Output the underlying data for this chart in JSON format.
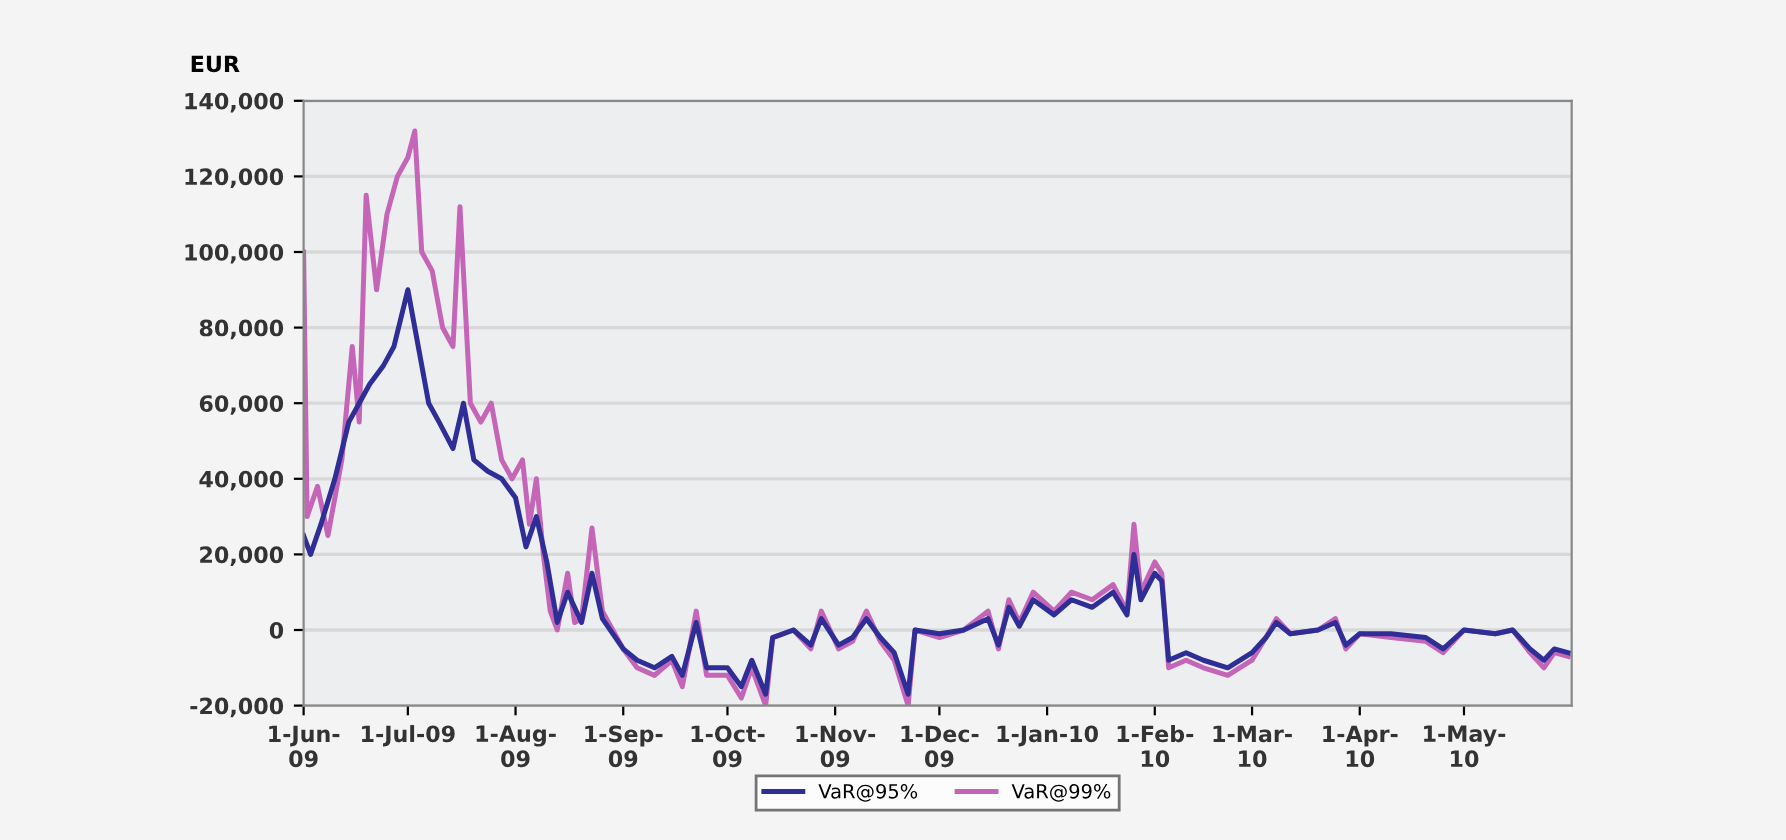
{
  "chart_data": {
    "type": "line",
    "ylabel": "EUR",
    "xlim": [
      "2009-06-01",
      "2010-06-01"
    ],
    "xticks": [
      {
        "value": "2009-06-01",
        "label": "1-Jun-\n09"
      },
      {
        "value": "2009-07-01",
        "label": "1-Jul-09"
      },
      {
        "value": "2009-08-01",
        "label": "1-Aug-\n09"
      },
      {
        "value": "2009-09-01",
        "label": "1-Sep-\n09"
      },
      {
        "value": "2009-10-01",
        "label": "1-Oct-\n09"
      },
      {
        "value": "2009-11-01",
        "label": "1-Nov-\n09"
      },
      {
        "value": "2009-12-01",
        "label": "1-Dec-\n09"
      },
      {
        "value": "2010-01-01",
        "label": "1-Jan-10"
      },
      {
        "value": "2010-02-01",
        "label": "1-Feb-\n10"
      },
      {
        "value": "2010-03-01",
        "label": "1-Mar-\n10"
      },
      {
        "value": "2010-04-01",
        "label": "1-Apr-\n10"
      },
      {
        "value": "2010-05-01",
        "label": "1-May-\n10"
      }
    ],
    "ylim": [
      -20000,
      140000
    ],
    "yticks": [
      {
        "value": -20000,
        "label": "-20,000"
      },
      0,
      {
        "value": 20000,
        "label": "20,000"
      },
      {
        "value": 40000,
        "label": "40,000"
      },
      {
        "value": 60000,
        "label": "60,000"
      },
      {
        "value": 80000,
        "label": "80,000"
      },
      {
        "value": 100000,
        "label": "100,000"
      },
      {
        "value": 120000,
        "label": "120,000"
      },
      {
        "value": 140000,
        "label": "140,000"
      }
    ],
    "grid": "y",
    "legend": "bottom",
    "marker": "none",
    "line_style": "solid",
    "series": [
      {
        "name": "VaR@99%",
        "color": "#c465b8",
        "x": [
          "2009-06-01",
          "2009-06-02",
          "2009-06-05",
          "2009-06-08",
          "2009-06-12",
          "2009-06-15",
          "2009-06-17",
          "2009-06-19",
          "2009-06-22",
          "2009-06-25",
          "2009-06-28",
          "2009-07-01",
          "2009-07-03",
          "2009-07-05",
          "2009-07-08",
          "2009-07-11",
          "2009-07-14",
          "2009-07-16",
          "2009-07-19",
          "2009-07-22",
          "2009-07-25",
          "2009-07-28",
          "2009-07-31",
          "2009-08-03",
          "2009-08-05",
          "2009-08-07",
          "2009-08-09",
          "2009-08-11",
          "2009-08-13",
          "2009-08-16",
          "2009-08-18",
          "2009-08-20",
          "2009-08-23",
          "2009-08-26",
          "2009-09-01",
          "2009-09-05",
          "2009-09-10",
          "2009-09-15",
          "2009-09-18",
          "2009-09-22",
          "2009-09-25",
          "2009-10-01",
          "2009-10-05",
          "2009-10-08",
          "2009-10-12",
          "2009-10-14",
          "2009-10-20",
          "2009-10-25",
          "2009-10-28",
          "2009-11-02",
          "2009-11-06",
          "2009-11-10",
          "2009-11-14",
          "2009-11-18",
          "2009-11-22",
          "2009-11-24",
          "2009-12-01",
          "2009-12-08",
          "2009-12-15",
          "2009-12-18",
          "2009-12-21",
          "2009-12-24",
          "2009-12-28",
          "2010-01-03",
          "2010-01-08",
          "2010-01-14",
          "2010-01-20",
          "2010-01-24",
          "2010-01-26",
          "2010-01-28",
          "2010-02-01",
          "2010-02-03",
          "2010-02-05",
          "2010-02-10",
          "2010-02-15",
          "2010-02-22",
          "2010-03-01",
          "2010-03-05",
          "2010-03-08",
          "2010-03-12",
          "2010-03-20",
          "2010-03-25",
          "2010-03-28",
          "2010-04-01",
          "2010-04-10",
          "2010-04-20",
          "2010-04-25",
          "2010-05-01",
          "2010-05-10",
          "2010-05-15",
          "2010-05-20",
          "2010-05-24",
          "2010-05-27",
          "2010-05-31"
        ],
        "values": [
          100000,
          30000,
          38000,
          25000,
          45000,
          75000,
          55000,
          115000,
          90000,
          110000,
          120000,
          125000,
          132000,
          100000,
          95000,
          80000,
          75000,
          112000,
          60000,
          55000,
          60000,
          45000,
          40000,
          45000,
          28000,
          40000,
          20000,
          5000,
          0,
          15000,
          2000,
          3000,
          27000,
          5000,
          -5000,
          -10000,
          -12000,
          -8000,
          -15000,
          5000,
          -12000,
          -12000,
          -18000,
          -10000,
          -20000,
          -2000,
          0,
          -5000,
          5000,
          -5000,
          -3000,
          5000,
          -3000,
          -8000,
          -20000,
          0,
          -2000,
          0,
          5000,
          -5000,
          8000,
          2000,
          10000,
          5000,
          10000,
          8000,
          12000,
          5000,
          28000,
          10000,
          18000,
          15000,
          -10000,
          -8000,
          -10000,
          -12000,
          -8000,
          -2000,
          3000,
          -1000,
          0,
          3000,
          -5000,
          -1000,
          -2000,
          -3000,
          -6000,
          0,
          -1000,
          0,
          -6000,
          -10000,
          -6000,
          -7000
        ]
      },
      {
        "name": "VaR@95%",
        "color": "#2e2e96",
        "x": [
          "2009-06-01",
          "2009-06-03",
          "2009-06-06",
          "2009-06-10",
          "2009-06-14",
          "2009-06-17",
          "2009-06-20",
          "2009-06-24",
          "2009-06-27",
          "2009-07-01",
          "2009-07-04",
          "2009-07-07",
          "2009-07-10",
          "2009-07-14",
          "2009-07-17",
          "2009-07-20",
          "2009-07-24",
          "2009-07-28",
          "2009-08-01",
          "2009-08-04",
          "2009-08-07",
          "2009-08-10",
          "2009-08-13",
          "2009-08-16",
          "2009-08-20",
          "2009-08-23",
          "2009-08-26",
          "2009-09-01",
          "2009-09-05",
          "2009-09-10",
          "2009-09-15",
          "2009-09-18",
          "2009-09-22",
          "2009-09-25",
          "2009-10-01",
          "2009-10-05",
          "2009-10-08",
          "2009-10-12",
          "2009-10-14",
          "2009-10-20",
          "2009-10-25",
          "2009-10-28",
          "2009-11-02",
          "2009-11-06",
          "2009-11-10",
          "2009-11-14",
          "2009-11-18",
          "2009-11-22",
          "2009-11-24",
          "2009-12-01",
          "2009-12-08",
          "2009-12-15",
          "2009-12-18",
          "2009-12-21",
          "2009-12-24",
          "2009-12-28",
          "2010-01-03",
          "2010-01-08",
          "2010-01-14",
          "2010-01-20",
          "2010-01-24",
          "2010-01-26",
          "2010-01-28",
          "2010-02-01",
          "2010-02-03",
          "2010-02-05",
          "2010-02-10",
          "2010-02-15",
          "2010-02-22",
          "2010-03-01",
          "2010-03-05",
          "2010-03-08",
          "2010-03-12",
          "2010-03-20",
          "2010-03-25",
          "2010-03-28",
          "2010-04-01",
          "2010-04-10",
          "2010-04-20",
          "2010-04-25",
          "2010-05-01",
          "2010-05-10",
          "2010-05-15",
          "2010-05-20",
          "2010-05-24",
          "2010-05-27",
          "2010-05-31"
        ],
        "values": [
          25000,
          20000,
          28000,
          40000,
          55000,
          60000,
          65000,
          70000,
          75000,
          90000,
          75000,
          60000,
          55000,
          48000,
          60000,
          45000,
          42000,
          40000,
          35000,
          22000,
          30000,
          18000,
          2000,
          10000,
          2000,
          15000,
          3000,
          -5000,
          -8000,
          -10000,
          -7000,
          -12000,
          2000,
          -10000,
          -10000,
          -15000,
          -8000,
          -17000,
          -2000,
          0,
          -4000,
          3000,
          -4000,
          -2000,
          3000,
          -2000,
          -6000,
          -17000,
          0,
          -1000,
          0,
          3000,
          -4000,
          6000,
          1000,
          8000,
          4000,
          8000,
          6000,
          10000,
          4000,
          20000,
          8000,
          15000,
          13000,
          -8000,
          -6000,
          -8000,
          -10000,
          -6000,
          -2000,
          2000,
          -1000,
          0,
          2000,
          -4000,
          -1000,
          -1000,
          -2000,
          -5000,
          0,
          -1000,
          0,
          -5000,
          -8000,
          -5000,
          -6000
        ]
      }
    ]
  }
}
